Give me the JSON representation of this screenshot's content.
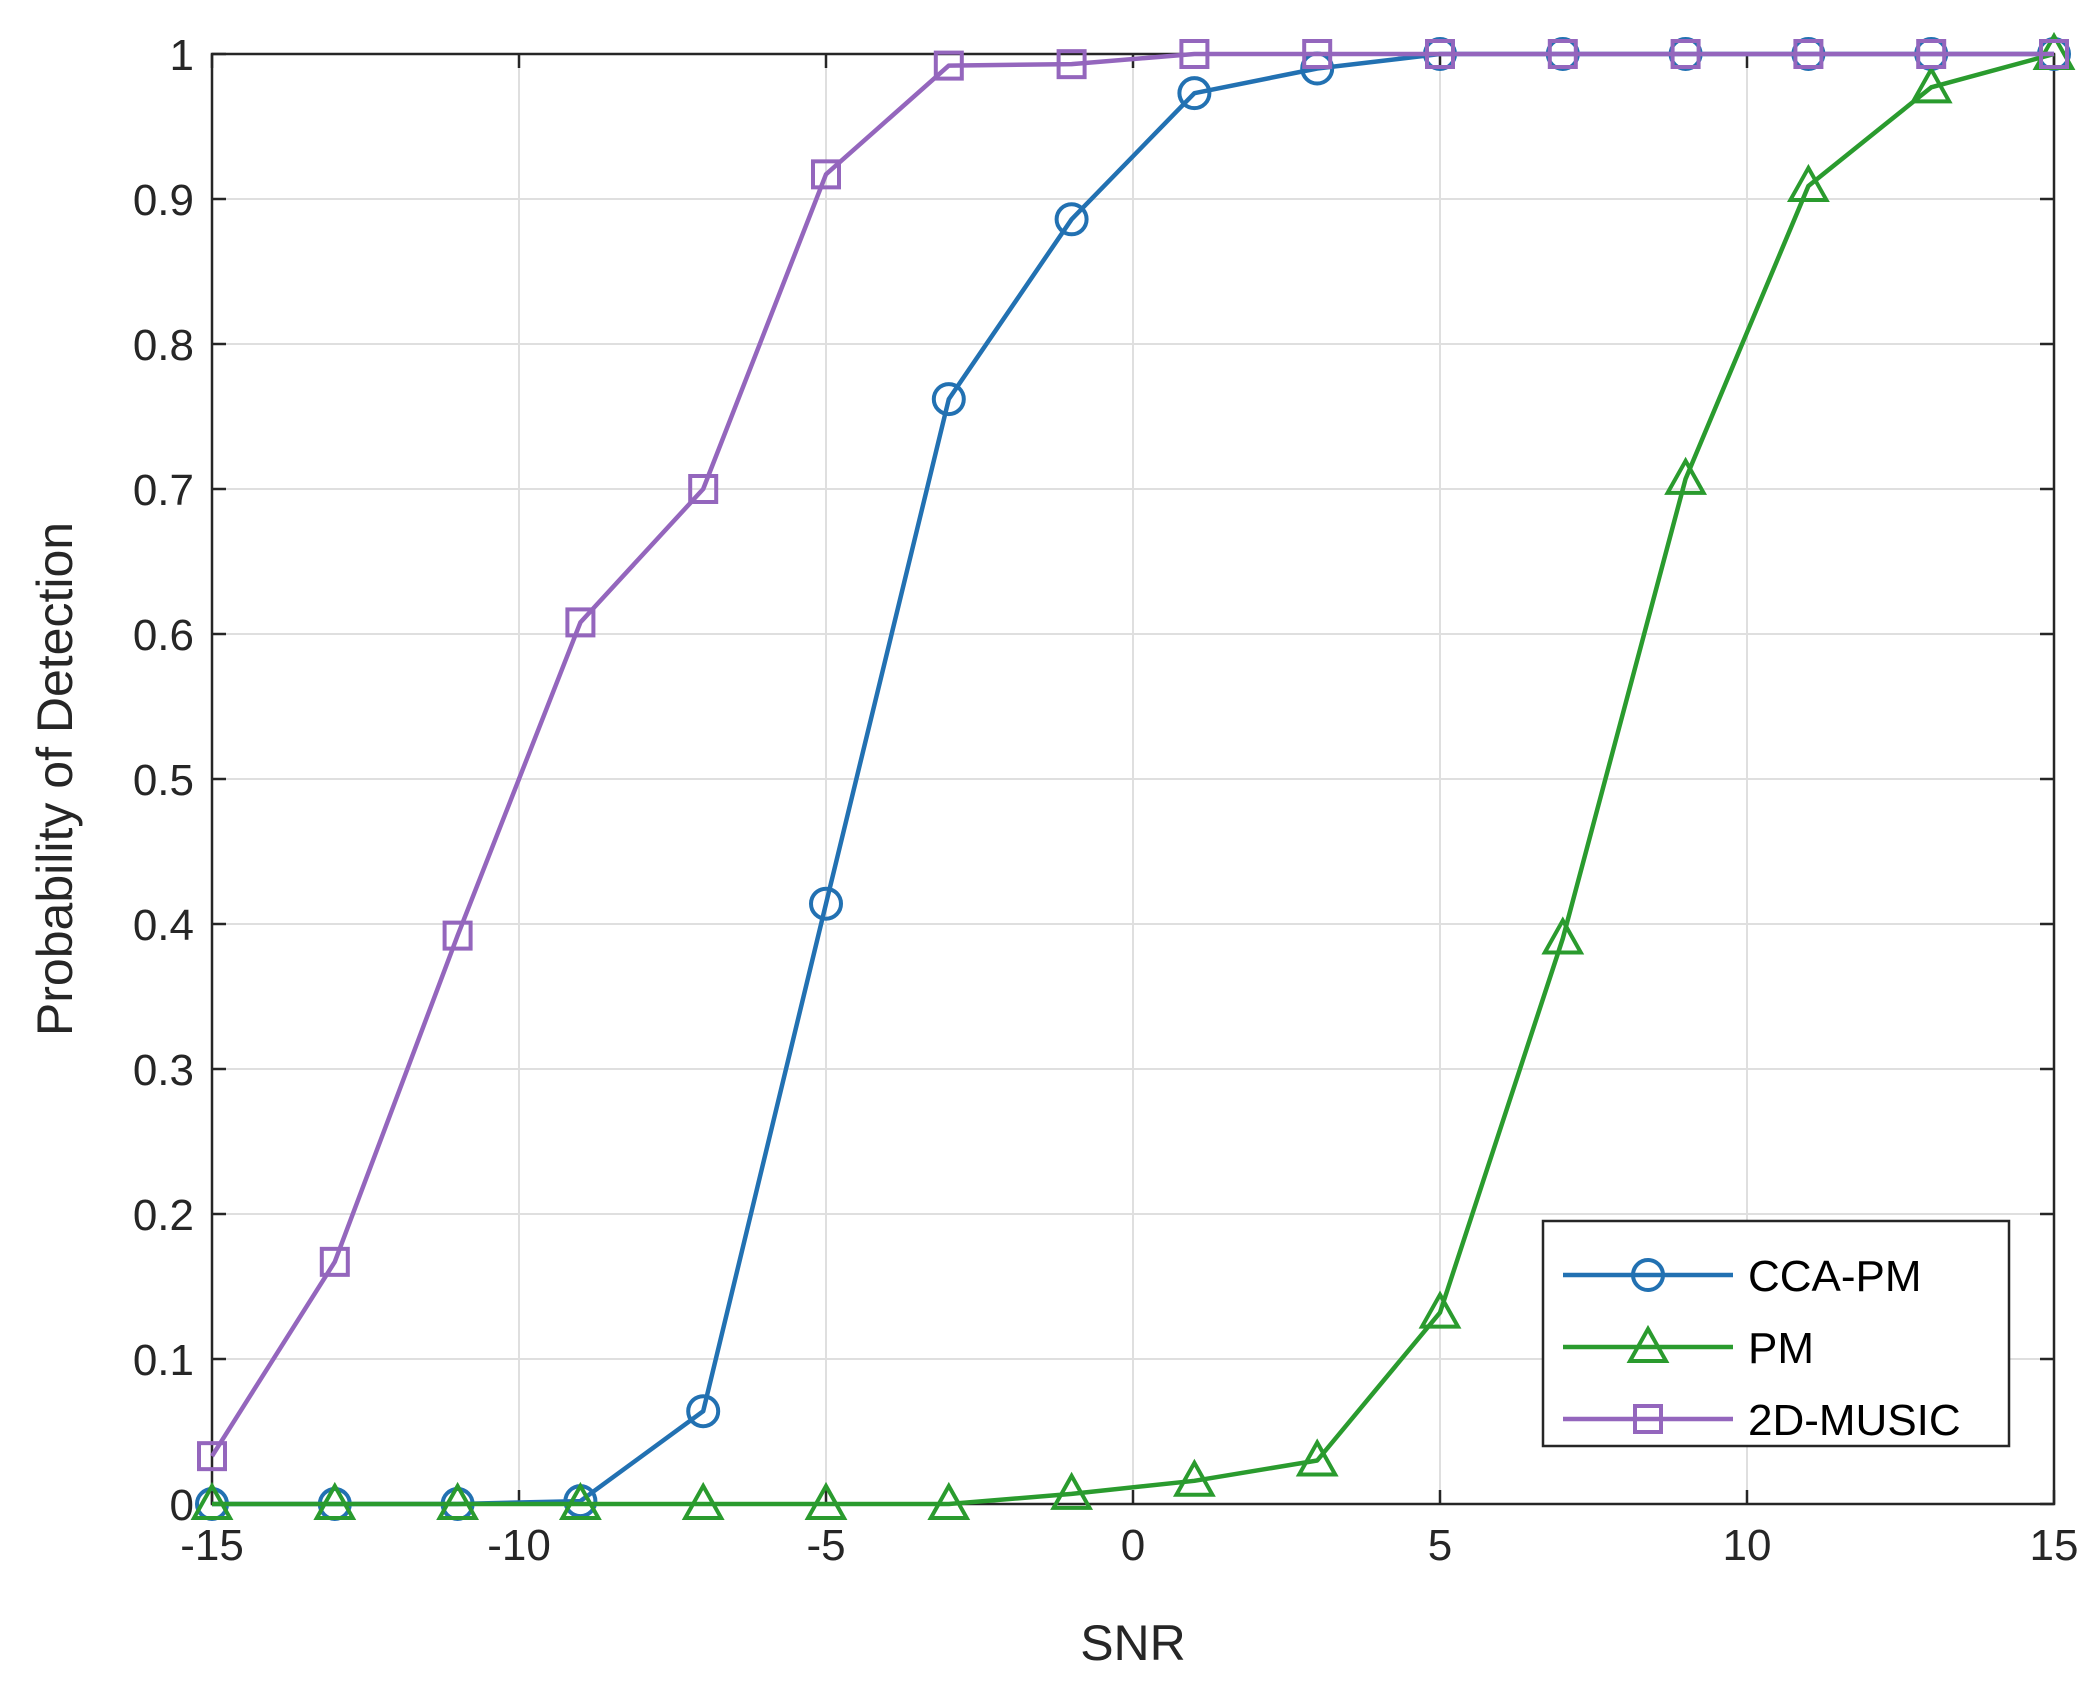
{
  "chart_data": {
    "type": "line",
    "title": "",
    "xlabel": "SNR",
    "ylabel": "Probability of Detection",
    "xlim": [
      -15,
      15
    ],
    "ylim": [
      0,
      1
    ],
    "grid": true,
    "legend_position": "bottom-right",
    "x": [
      -15,
      -13,
      -11,
      -9,
      -7,
      -5,
      -3,
      -1,
      1,
      3,
      5,
      7,
      9,
      11,
      13,
      15
    ],
    "xticks": [
      -15,
      -10,
      -5,
      0,
      5,
      10,
      15
    ],
    "xtick_labels": [
      "-15",
      "-10",
      "-5",
      "0",
      "5",
      "10",
      "15"
    ],
    "yticks": [
      0,
      0.1,
      0.2,
      0.3,
      0.4,
      0.5,
      0.6,
      0.7,
      0.8,
      0.9,
      1
    ],
    "ytick_labels": [
      "0",
      "0.1",
      "0.2",
      "0.3",
      "0.4",
      "0.5",
      "0.6",
      "0.7",
      "0.8",
      "0.9",
      "1"
    ],
    "series": [
      {
        "name": "CCA-PM",
        "color": "#2271b2",
        "marker": "circle",
        "values": [
          0.0,
          0.0,
          0.0,
          0.002,
          0.064,
          0.414,
          0.762,
          0.886,
          0.973,
          0.99,
          1.0,
          1.0,
          1.0,
          1.0,
          1.0,
          1.0
        ]
      },
      {
        "name": "PM",
        "color": "#2a9b2e",
        "marker": "triangle",
        "values": [
          0.0,
          0.0,
          0.0,
          0.0,
          0.0,
          0.0,
          0.0,
          0.007,
          0.016,
          0.03,
          0.132,
          0.39,
          0.707,
          0.909,
          0.977,
          1.0
        ]
      },
      {
        "name": "2D-MUSIC",
        "color": "#9466bd",
        "marker": "square",
        "values": [
          0.033,
          0.167,
          0.392,
          0.608,
          0.7,
          0.917,
          0.992,
          0.993,
          1.0,
          1.0,
          1.0,
          1.0,
          1.0,
          1.0,
          1.0,
          1.0
        ]
      }
    ]
  }
}
